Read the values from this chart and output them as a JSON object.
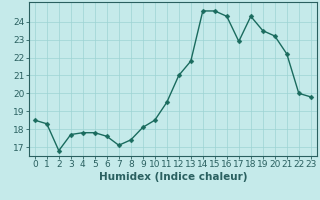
{
  "x": [
    0,
    1,
    2,
    3,
    4,
    5,
    6,
    7,
    8,
    9,
    10,
    11,
    12,
    13,
    14,
    15,
    16,
    17,
    18,
    19,
    20,
    21,
    22,
    23
  ],
  "y": [
    18.5,
    18.3,
    16.8,
    17.7,
    17.8,
    17.8,
    17.6,
    17.1,
    17.4,
    18.1,
    18.5,
    19.5,
    21.0,
    21.8,
    24.6,
    24.6,
    24.3,
    22.9,
    24.3,
    23.5,
    23.2,
    22.2,
    20.0,
    19.8
  ],
  "xlabel": "Humidex (Indice chaleur)",
  "line_color": "#1a6b5e",
  "marker_color": "#1a6b5e",
  "bg_color": "#c5eaea",
  "grid_color": "#9dd4d4",
  "axis_color": "#2a6060",
  "ylim": [
    16.5,
    25.1
  ],
  "xlim": [
    -0.5,
    23.5
  ],
  "yticks": [
    17,
    18,
    19,
    20,
    21,
    22,
    23,
    24
  ],
  "xticks": [
    0,
    1,
    2,
    3,
    4,
    5,
    6,
    7,
    8,
    9,
    10,
    11,
    12,
    13,
    14,
    15,
    16,
    17,
    18,
    19,
    20,
    21,
    22,
    23
  ],
  "tick_labelsize": 6.5,
  "xlabel_fontsize": 7.5,
  "linewidth": 1.0,
  "markersize": 2.5
}
